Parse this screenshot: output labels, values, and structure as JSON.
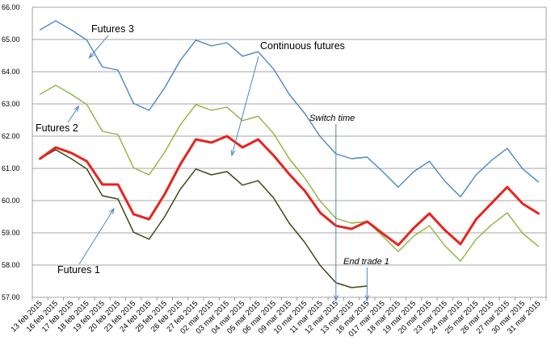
{
  "chart_data": {
    "type": "line",
    "title": "",
    "xlabel": "",
    "ylabel": "",
    "ylim": [
      57.0,
      66.0
    ],
    "y_ticks": [
      "57.00",
      "58.00",
      "59.00",
      "60.00",
      "61.00",
      "62.00",
      "63.00",
      "64.00",
      "65.00",
      "66.00"
    ],
    "grid": true,
    "legend": "none",
    "categories": [
      "13 feb 2015",
      "16 feb 2015",
      "17 feb 2015",
      "18 feb 2015",
      "19 feb 2015",
      "20 feb 2015",
      "23 feb 2015",
      "24 feb 2015",
      "25 feb 2015",
      "26 feb 2015",
      "27 feb 2015",
      "02 mar 2015",
      "03 mar 2015",
      "04 mar 2015",
      "05 mar 2015",
      "06 mar 2015",
      "09 mar 2015",
      "10 mar 2015",
      "11 mar 2015",
      "12 mar 2015",
      "13 mar 2015",
      "16 mar 2015",
      "017 mar 2015",
      "18 mar 2015",
      "19 mar 2015",
      "20 mar 2015",
      "23 mar 2015",
      "24 mar 2015",
      "25 mar 2015",
      "26 mar 2015",
      "27 mar 2015",
      "30 mar 2015",
      "31 mar 2015"
    ],
    "series": [
      {
        "key": "f3",
        "color": "#4a86c8",
        "width": 1.4,
        "values": [
          65.3,
          65.58,
          65.3,
          64.98,
          64.15,
          64.05,
          63.02,
          62.8,
          63.5,
          64.35,
          64.98,
          64.8,
          64.9,
          64.48,
          64.62,
          64.08,
          63.3,
          62.7,
          61.98,
          61.45,
          61.3,
          61.35,
          60.9,
          60.42,
          60.9,
          61.22,
          60.6,
          60.12,
          60.8,
          61.25,
          61.62,
          60.98,
          60.58
        ]
      },
      {
        "key": "f2",
        "color": "#8cb43c",
        "width": 1.4,
        "values": [
          63.3,
          63.58,
          63.3,
          62.98,
          62.15,
          62.05,
          61.02,
          60.8,
          61.5,
          62.35,
          62.98,
          62.8,
          62.9,
          62.48,
          62.62,
          62.08,
          61.3,
          60.7,
          59.98,
          59.45,
          59.3,
          59.35,
          58.9,
          58.42,
          58.9,
          59.22,
          58.6,
          58.12,
          58.8,
          59.25,
          59.62,
          58.98,
          58.58
        ]
      },
      {
        "key": "f1",
        "color": "#3b4a14",
        "width": 1.5,
        "values": [
          61.3,
          61.58,
          61.3,
          60.98,
          60.15,
          60.05,
          59.02,
          58.8,
          59.5,
          60.35,
          60.98,
          60.8,
          60.9,
          60.48,
          60.62,
          60.08,
          59.3,
          58.7,
          57.98,
          57.45,
          57.3,
          57.35,
          null,
          null,
          null,
          null,
          null,
          null,
          null,
          null,
          null,
          null,
          null
        ]
      },
      {
        "key": "cf",
        "color": "#e8231e",
        "width": 3,
        "values": [
          61.3,
          61.65,
          61.48,
          61.22,
          60.5,
          60.5,
          59.58,
          59.42,
          60.2,
          61.12,
          61.9,
          61.8,
          62.0,
          61.65,
          61.9,
          61.4,
          60.82,
          60.3,
          59.62,
          59.22,
          59.12,
          59.35,
          58.98,
          58.62,
          59.15,
          59.6,
          59.08,
          58.65,
          59.42,
          59.92,
          60.42,
          59.9,
          59.6
        ]
      }
    ],
    "annotations": [
      {
        "key": "a_f3",
        "text": "Futures 3",
        "style": "normal"
      },
      {
        "key": "a_cf",
        "text": "Continuous futures",
        "style": "normal"
      },
      {
        "key": "a_f2",
        "text": "Futures 2",
        "style": "normal"
      },
      {
        "key": "a_f1",
        "text": "Futures 1",
        "style": "normal"
      },
      {
        "key": "a_switch",
        "text": "Switch time",
        "style": "italic"
      },
      {
        "key": "a_end",
        "text": "End trade 1",
        "style": "italic"
      }
    ]
  }
}
